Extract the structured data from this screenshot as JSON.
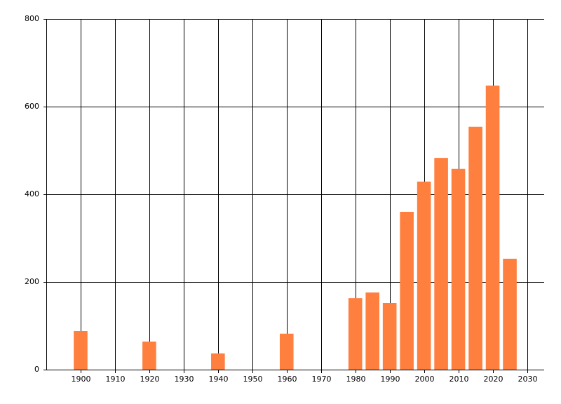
{
  "chart_data": {
    "type": "bar",
    "x": [
      1900,
      1920,
      1940,
      1960,
      1980,
      1985,
      1990,
      1995,
      2000,
      2005,
      2010,
      2015,
      2020,
      2025
    ],
    "values": [
      88,
      64,
      37,
      82,
      163,
      176,
      152,
      360,
      429,
      483,
      458,
      554,
      648,
      253
    ],
    "color": "#ff7f3f",
    "xlim": [
      1890,
      2035
    ],
    "xticks": [
      1900,
      1910,
      1920,
      1930,
      1940,
      1950,
      1960,
      1970,
      1980,
      1990,
      2000,
      2010,
      2020,
      2030
    ],
    "ylim": [
      0,
      800
    ],
    "yticks": [
      0,
      200,
      400,
      600,
      800
    ],
    "grid": true
  }
}
